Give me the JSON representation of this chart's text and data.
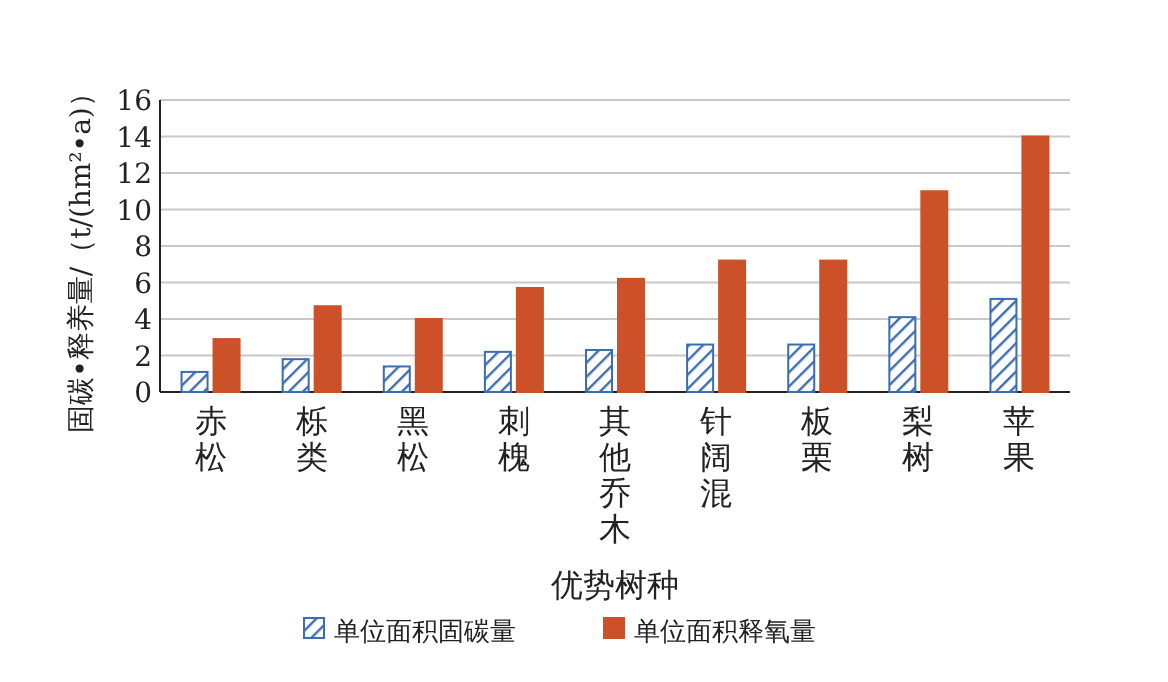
{
  "chart_data": {
    "type": "bar",
    "xlabel": "优势树种",
    "ylabel": "固碳•释养量/（t/(hm²•a)）",
    "categories": [
      "赤松",
      "栎类",
      "黑松",
      "刺槐",
      "其他乔木",
      "针阔混",
      "板栗",
      "梨树",
      "苹果"
    ],
    "series": [
      {
        "name": "单位面积固碳量",
        "color": "#3d6db0",
        "values": [
          1.1,
          1.8,
          1.4,
          2.2,
          2.3,
          2.6,
          2.6,
          4.1,
          5.1
        ]
      },
      {
        "name": "单位面积释氧量",
        "color": "#cc5128",
        "values": [
          2.9,
          4.7,
          4.0,
          5.7,
          6.2,
          7.2,
          7.2,
          11.0,
          14.0
        ]
      }
    ],
    "ylim": [
      0,
      16
    ],
    "yticks": [
      0,
      2,
      4,
      6,
      8,
      10,
      12,
      14,
      16
    ],
    "grid": "y",
    "legend": "bottom"
  }
}
